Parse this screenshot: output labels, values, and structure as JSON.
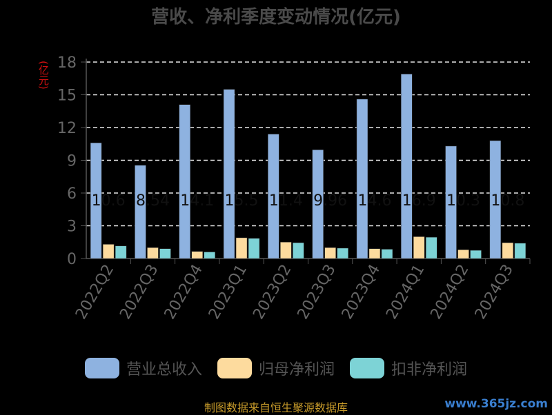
{
  "chart_data": {
    "type": "bar",
    "title": "营收、净利季度变动情况(亿元)",
    "ylabel": "(亿元)",
    "categories": [
      "2022Q2",
      "2022Q3",
      "2022Q4",
      "2023Q1",
      "2023Q2",
      "2023Q3",
      "2023Q4",
      "2024Q1",
      "2024Q2",
      "2024Q3"
    ],
    "series": [
      {
        "name": "营业总收入",
        "values": [
          10.6,
          8.54,
          14.1,
          15.5,
          11.4,
          9.96,
          14.6,
          16.9,
          10.3,
          10.8
        ],
        "color": "#8eb2e0"
      },
      {
        "name": "归母净利润",
        "values": [
          1.3,
          1.0,
          0.65,
          1.9,
          1.5,
          1.0,
          0.9,
          2.0,
          0.8,
          1.45
        ],
        "color": "#fddb9e"
      },
      {
        "name": "扣非净利润",
        "values": [
          1.15,
          0.9,
          0.6,
          1.85,
          1.45,
          0.95,
          0.85,
          1.95,
          0.75,
          1.4
        ],
        "color": "#7dd3d6"
      }
    ],
    "data_labels": [
      "10.6",
      "8.54",
      "14.1",
      "15.5",
      "11.4",
      "9.96",
      "14.6",
      "16.9",
      "10.3",
      "10.8"
    ],
    "ylim": [
      0,
      18
    ],
    "yticks": [
      0,
      3,
      6,
      9,
      12,
      15,
      18
    ],
    "grid": true,
    "legend_position": "bottom"
  },
  "source_text": "制图数据来自恒生聚源数据库",
  "watermark": "www.365jz.com"
}
